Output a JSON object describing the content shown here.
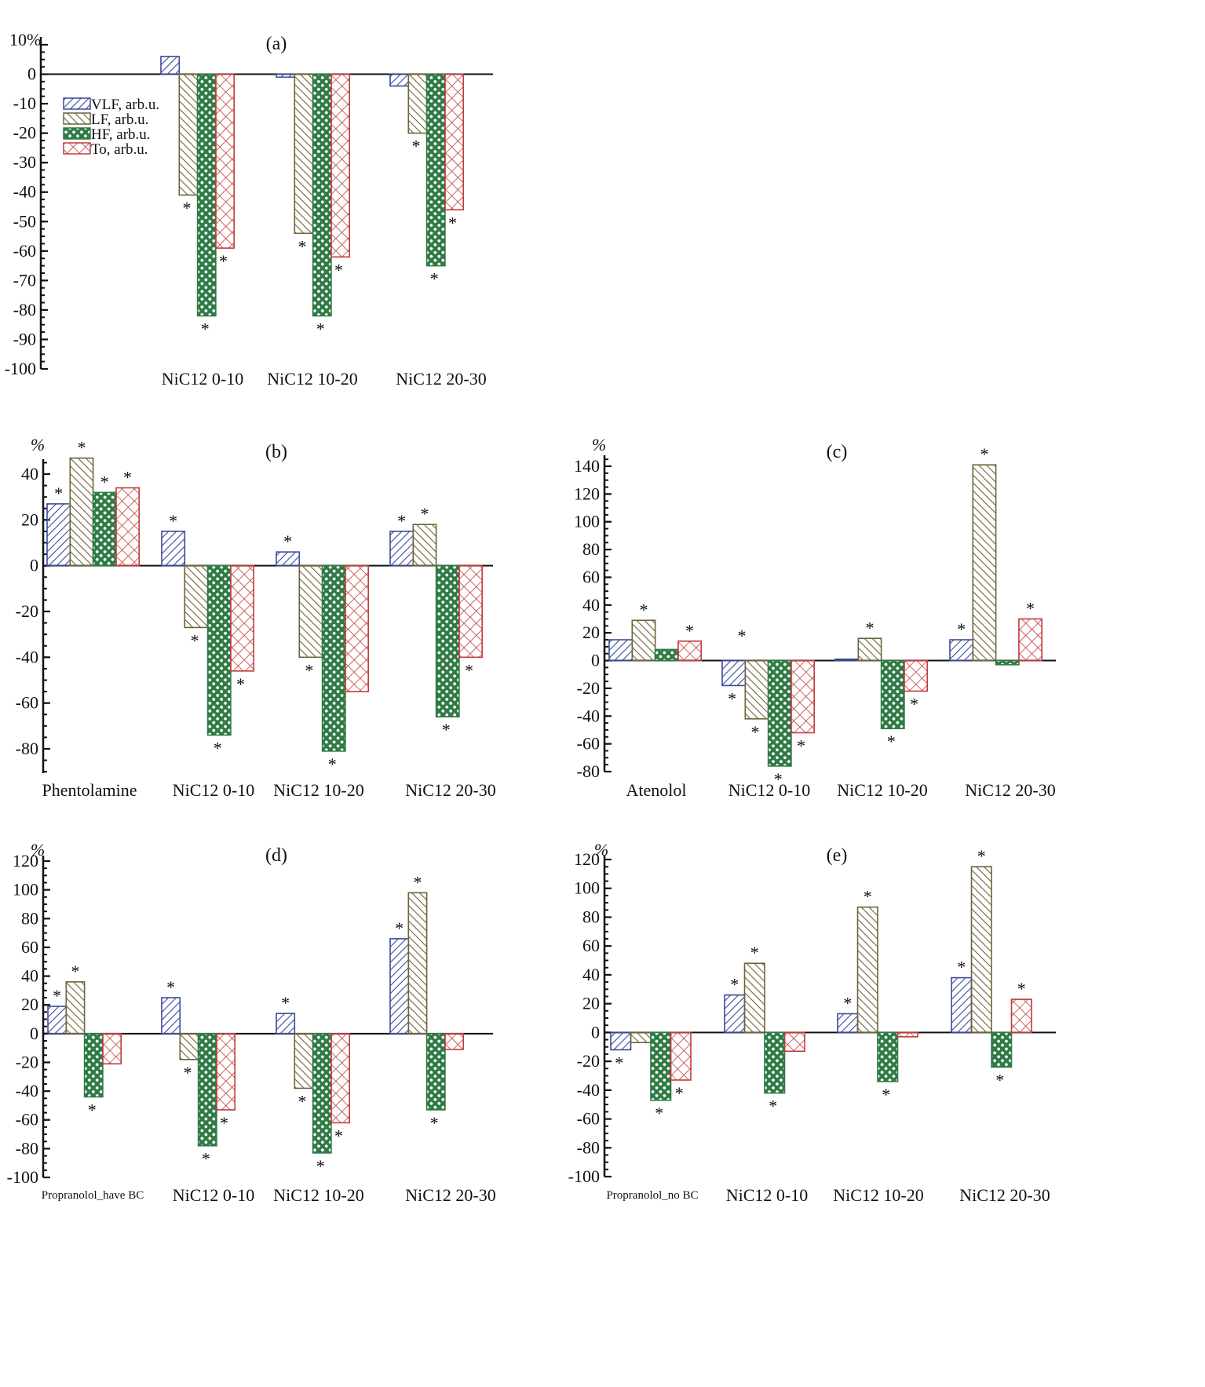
{
  "legend": [
    {
      "key": "VLF",
      "label": "VLF, arb.u.",
      "color": "#3a4a9a",
      "pattern": "diag-right"
    },
    {
      "key": "LF",
      "label": "LF, arb.u.",
      "color": "#6e6338",
      "pattern": "diag-left"
    },
    {
      "key": "HF",
      "label": "HF, arb.u.",
      "color": "#2f7a45",
      "pattern": "dense-cross"
    },
    {
      "key": "To",
      "label": "To, arb.u.",
      "color": "#c23a3a",
      "pattern": "cross"
    }
  ],
  "chart_data": [
    {
      "type": "bar",
      "title": "(a)",
      "ylabel": "%",
      "ylim": [
        -100,
        10
      ],
      "yticks": [
        10,
        0,
        -10,
        -20,
        -30,
        -40,
        -50,
        -60,
        -70,
        -80,
        -90,
        -100
      ],
      "ytick_labels": [
        "10",
        "0",
        "-10",
        "-20",
        "-30",
        "-40",
        "-50",
        "-60",
        "-70",
        "-80",
        "-90",
        "-100"
      ],
      "top_label": "10%",
      "categories": [
        "",
        "NiC12 0-10",
        "NiC12 10-20",
        "NiC12 20-30"
      ],
      "series": [
        {
          "name": "VLF, arb.u.",
          "values": [
            null,
            6,
            -1,
            -4
          ],
          "significant": [
            false,
            false,
            false,
            false
          ]
        },
        {
          "name": "LF, arb.u.",
          "values": [
            null,
            -41,
            -54,
            -20
          ],
          "significant": [
            false,
            true,
            true,
            true
          ]
        },
        {
          "name": "HF, arb.u.",
          "values": [
            null,
            -82,
            -82,
            -65
          ],
          "significant": [
            false,
            true,
            true,
            true
          ]
        },
        {
          "name": "To, arb.u.",
          "values": [
            null,
            -59,
            -62,
            -46
          ],
          "significant": [
            false,
            true,
            true,
            true
          ]
        }
      ],
      "legend_position": "top-left"
    },
    {
      "type": "bar",
      "title": "(b)",
      "ylabel": "%",
      "ylim": [
        -90,
        50
      ],
      "yticks": [
        40,
        20,
        0,
        -20,
        -40,
        -60,
        -80
      ],
      "ytick_labels": [
        "40",
        "20",
        "0",
        "-20",
        "-40",
        "-60",
        "-80"
      ],
      "categories": [
        "Phentolamine",
        "NiC12 0-10",
        "NiC12 10-20",
        "NiC12 20-30"
      ],
      "series": [
        {
          "name": "VLF, arb.u.",
          "values": [
            27,
            15,
            6,
            15
          ],
          "significant": [
            true,
            true,
            true,
            true
          ]
        },
        {
          "name": "LF, arb.u.",
          "values": [
            47,
            -27,
            -40,
            18
          ],
          "significant": [
            true,
            true,
            true,
            true
          ]
        },
        {
          "name": "HF, arb.u.",
          "values": [
            32,
            -74,
            -81,
            -66
          ],
          "significant": [
            true,
            true,
            true,
            true
          ]
        },
        {
          "name": "To, arb.u.",
          "values": [
            34,
            -46,
            -55,
            -40
          ],
          "significant": [
            true,
            true,
            false,
            true
          ]
        }
      ]
    },
    {
      "type": "bar",
      "title": "(c)",
      "ylabel": "%",
      "ylim": [
        -80,
        150
      ],
      "yticks": [
        140,
        120,
        100,
        80,
        60,
        40,
        20,
        0,
        -20,
        -40,
        -60,
        -80
      ],
      "ytick_labels": [
        "140",
        "120",
        "100",
        "80",
        "60",
        "40",
        "20",
        "0",
        "-20",
        "-40",
        "-60",
        "-80"
      ],
      "categories": [
        "Atenolol",
        "NiC12 0-10",
        "NiC12 10-20",
        "NiC12 20-30"
      ],
      "series": [
        {
          "name": "VLF, arb.u.",
          "values": [
            15,
            -18,
            1,
            15
          ],
          "significant": [
            false,
            true,
            false,
            true
          ]
        },
        {
          "name": "LF, arb.u.",
          "values": [
            29,
            -42,
            16,
            141
          ],
          "significant": [
            true,
            true,
            true,
            true
          ]
        },
        {
          "name": "HF, arb.u.",
          "values": [
            8,
            -76,
            -49,
            -3
          ],
          "significant": [
            false,
            true,
            true,
            false
          ]
        },
        {
          "name": "To, arb.u.",
          "values": [
            14,
            -52,
            -22,
            30
          ],
          "significant": [
            true,
            true,
            true,
            true
          ]
        }
      ],
      "extra_marks": [
        {
          "text": "*",
          "between": "Atenolol and NiC12 0-10",
          "value": 18
        }
      ]
    },
    {
      "type": "bar",
      "title": "(d)",
      "ylabel": "%",
      "ylim": [
        -100,
        120
      ],
      "yticks": [
        120,
        100,
        80,
        60,
        40,
        20,
        0,
        -20,
        -40,
        -60,
        -80,
        -100
      ],
      "ytick_labels": [
        "120",
        "100",
        "80",
        "60",
        "40",
        "20",
        "0",
        "-20",
        "-40",
        "-60",
        "-80",
        "-100"
      ],
      "categories": [
        "Propranolol_have BC",
        "NiC12 0-10",
        "NiC12 10-20",
        "NiC12 20-30"
      ],
      "series": [
        {
          "name": "VLF, arb.u.",
          "values": [
            19,
            25,
            14,
            66
          ],
          "significant": [
            true,
            true,
            true,
            true
          ]
        },
        {
          "name": "LF, arb.u.",
          "values": [
            36,
            -18,
            -38,
            98
          ],
          "significant": [
            true,
            true,
            true,
            true
          ]
        },
        {
          "name": "HF, arb.u.",
          "values": [
            -44,
            -78,
            -83,
            -53
          ],
          "significant": [
            true,
            true,
            true,
            true
          ]
        },
        {
          "name": "To, arb.u.",
          "values": [
            -21,
            -53,
            -62,
            -11
          ],
          "significant": [
            false,
            true,
            true,
            false
          ]
        }
      ]
    },
    {
      "type": "bar",
      "title": "(e)",
      "ylabel": "%",
      "ylim": [
        -100,
        120
      ],
      "yticks": [
        120,
        100,
        80,
        60,
        40,
        20,
        0,
        -20,
        -40,
        -60,
        -80,
        -100
      ],
      "ytick_labels": [
        "120",
        "100",
        "80",
        "60",
        "40",
        "20",
        "0",
        "-20",
        "-40",
        "-60",
        "-80",
        "-100"
      ],
      "categories": [
        "Propranolol_no BC",
        "NiC12 0-10",
        "NiC12 10-20",
        "NiC12 20-30"
      ],
      "series": [
        {
          "name": "VLF, arb.u.",
          "values": [
            -12,
            26,
            13,
            38
          ],
          "significant": [
            true,
            true,
            true,
            true
          ]
        },
        {
          "name": "LF, arb.u.",
          "values": [
            -7,
            48,
            87,
            115
          ],
          "significant": [
            false,
            true,
            true,
            true
          ]
        },
        {
          "name": "HF, arb.u.",
          "values": [
            -47,
            -42,
            -34,
            -24
          ],
          "significant": [
            true,
            true,
            true,
            true
          ]
        },
        {
          "name": "To, arb.u.",
          "values": [
            -33,
            -13,
            -3,
            23
          ],
          "significant": [
            true,
            false,
            false,
            true
          ]
        }
      ]
    }
  ]
}
